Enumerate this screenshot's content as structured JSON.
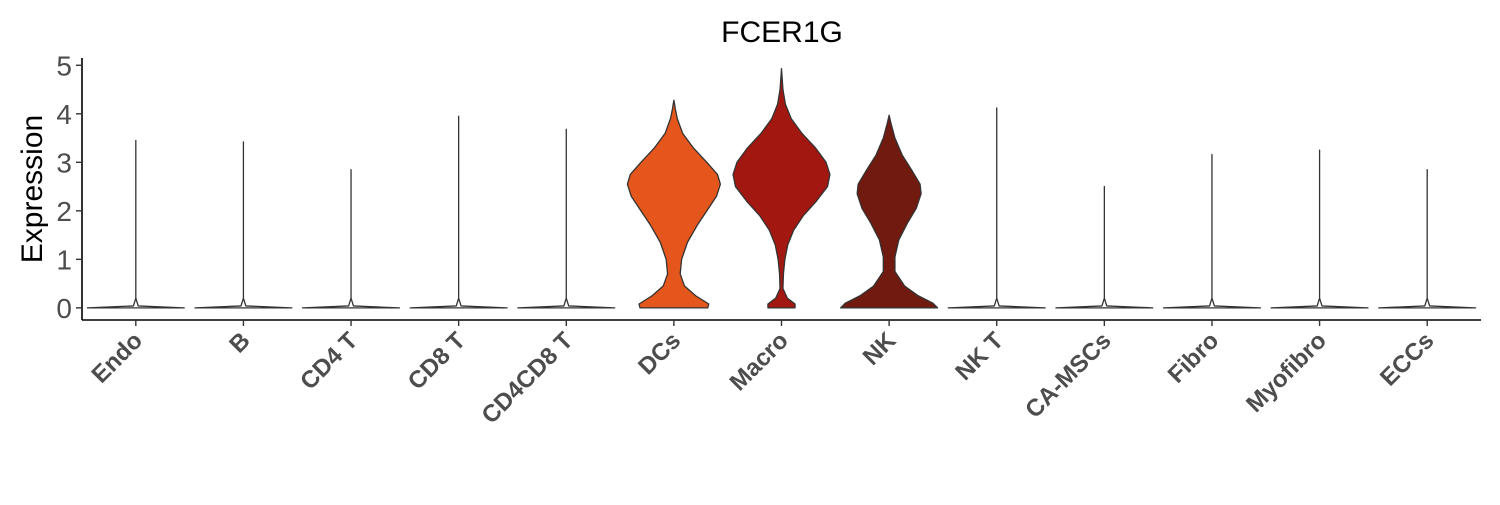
{
  "chart_data": {
    "type": "violin",
    "title": "FCER1G",
    "xlabel": "",
    "ylabel": "Expression",
    "ylim": [
      -0.25,
      5.15
    ],
    "yticks": [
      0,
      1,
      2,
      3,
      4,
      5
    ],
    "ytick_labels": [
      "0",
      "1",
      "2",
      "3",
      "4",
      "5"
    ],
    "grid": false,
    "legend": "none",
    "categories": [
      "Endo",
      "B",
      "CD4 T",
      "CD8 T",
      "CD4CD8 T",
      "DCs",
      "Macro",
      "NK",
      "NK T",
      "CA-MSCs",
      "Fibro",
      "Myofibro",
      "ECCs"
    ],
    "series": [
      {
        "category": "Endo",
        "max": 3.45,
        "color": "#ffffff",
        "density": [
          [
            0,
            1.0
          ],
          [
            0.04,
            0.05
          ],
          [
            0.2,
            0.0
          ],
          [
            3.45,
            0.0
          ]
        ]
      },
      {
        "category": "B",
        "max": 3.42,
        "color": "#ffffff",
        "density": [
          [
            0,
            1.0
          ],
          [
            0.04,
            0.05
          ],
          [
            0.2,
            0.0
          ],
          [
            3.42,
            0.0
          ]
        ]
      },
      {
        "category": "CD4 T",
        "max": 2.85,
        "color": "#ffffff",
        "density": [
          [
            0,
            1.0
          ],
          [
            0.04,
            0.05
          ],
          [
            0.2,
            0.0
          ],
          [
            2.85,
            0.0
          ]
        ]
      },
      {
        "category": "CD8 T",
        "max": 3.95,
        "color": "#ffffff",
        "density": [
          [
            0,
            1.0
          ],
          [
            0.04,
            0.05
          ],
          [
            0.2,
            0.0
          ],
          [
            3.95,
            0.0
          ]
        ]
      },
      {
        "category": "CD4CD8 T",
        "max": 3.68,
        "color": "#ffffff",
        "density": [
          [
            0,
            1.0
          ],
          [
            0.04,
            0.05
          ],
          [
            0.2,
            0.0
          ],
          [
            3.68,
            0.0
          ]
        ]
      },
      {
        "category": "DCs",
        "max": 4.28,
        "color": "#e4561b",
        "density": [
          [
            0,
            0.7
          ],
          [
            0.08,
            0.72
          ],
          [
            0.25,
            0.45
          ],
          [
            0.45,
            0.22
          ],
          [
            0.7,
            0.13
          ],
          [
            1.0,
            0.16
          ],
          [
            1.35,
            0.28
          ],
          [
            1.7,
            0.48
          ],
          [
            2.0,
            0.68
          ],
          [
            2.3,
            0.88
          ],
          [
            2.55,
            0.96
          ],
          [
            2.75,
            0.9
          ],
          [
            3.0,
            0.68
          ],
          [
            3.3,
            0.4
          ],
          [
            3.6,
            0.18
          ],
          [
            3.9,
            0.07
          ],
          [
            4.1,
            0.03
          ],
          [
            4.28,
            0.0
          ]
        ]
      },
      {
        "category": "Macro",
        "max": 4.93,
        "color": "#a21710",
        "density": [
          [
            0,
            0.28
          ],
          [
            0.08,
            0.28
          ],
          [
            0.2,
            0.12
          ],
          [
            0.4,
            0.03
          ],
          [
            0.7,
            0.04
          ],
          [
            1.0,
            0.07
          ],
          [
            1.3,
            0.13
          ],
          [
            1.6,
            0.25
          ],
          [
            1.9,
            0.45
          ],
          [
            2.2,
            0.72
          ],
          [
            2.5,
            0.95
          ],
          [
            2.75,
            1.0
          ],
          [
            3.0,
            0.92
          ],
          [
            3.3,
            0.7
          ],
          [
            3.6,
            0.42
          ],
          [
            3.9,
            0.2
          ],
          [
            4.2,
            0.08
          ],
          [
            4.5,
            0.03
          ],
          [
            4.93,
            0.0
          ]
        ]
      },
      {
        "category": "NK",
        "max": 3.97,
        "color": "#711a10",
        "density": [
          [
            0,
            1.0
          ],
          [
            0.1,
            0.9
          ],
          [
            0.25,
            0.6
          ],
          [
            0.45,
            0.32
          ],
          [
            0.75,
            0.12
          ],
          [
            1.05,
            0.12
          ],
          [
            1.4,
            0.2
          ],
          [
            1.75,
            0.38
          ],
          [
            2.05,
            0.56
          ],
          [
            2.35,
            0.66
          ],
          [
            2.55,
            0.64
          ],
          [
            2.85,
            0.46
          ],
          [
            3.15,
            0.27
          ],
          [
            3.5,
            0.12
          ],
          [
            3.8,
            0.04
          ],
          [
            3.97,
            0.0
          ]
        ]
      },
      {
        "category": "NK T",
        "max": 4.12,
        "color": "#ffffff",
        "density": [
          [
            0,
            1.0
          ],
          [
            0.04,
            0.05
          ],
          [
            0.2,
            0.0
          ],
          [
            4.12,
            0.0
          ]
        ]
      },
      {
        "category": "CA-MSCs",
        "max": 2.5,
        "color": "#ffffff",
        "density": [
          [
            0,
            1.0
          ],
          [
            0.04,
            0.05
          ],
          [
            0.2,
            0.0
          ],
          [
            2.5,
            0.0
          ]
        ]
      },
      {
        "category": "Fibro",
        "max": 3.16,
        "color": "#ffffff",
        "density": [
          [
            0,
            1.0
          ],
          [
            0.04,
            0.05
          ],
          [
            0.2,
            0.0
          ],
          [
            3.16,
            0.0
          ]
        ]
      },
      {
        "category": "Myofibro",
        "max": 3.25,
        "color": "#ffffff",
        "density": [
          [
            0,
            1.0
          ],
          [
            0.04,
            0.05
          ],
          [
            0.2,
            0.0
          ],
          [
            3.25,
            0.0
          ]
        ]
      },
      {
        "category": "ECCs",
        "max": 2.85,
        "color": "#ffffff",
        "density": [
          [
            0,
            1.0
          ],
          [
            0.04,
            0.05
          ],
          [
            0.2,
            0.0
          ],
          [
            2.85,
            0.0
          ]
        ]
      }
    ]
  }
}
